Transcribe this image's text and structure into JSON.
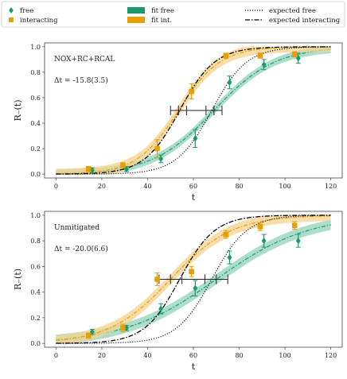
{
  "legend": {
    "entries": [
      {
        "label": "free",
        "marker": "diamond",
        "color": "#1a9a6c"
      },
      {
        "label": "interacting",
        "marker": "square",
        "color": "#e69f00"
      },
      {
        "label": "fit free",
        "marker": "band",
        "color": "#1a9a6c"
      },
      {
        "label": "fit int.",
        "marker": "band",
        "color": "#e69f00"
      },
      {
        "label": "expected free",
        "marker": "dotted",
        "color": "#000000"
      },
      {
        "label": "expected interacting",
        "marker": "dashdot",
        "color": "#000000"
      }
    ]
  },
  "colors": {
    "free": "#1a9a6c",
    "interacting": "#e69f00",
    "free_band": "#8fd1b8",
    "int_band": "#f5d28f",
    "expected": "#000000"
  },
  "chart_data": [
    {
      "type": "scatter",
      "annotation": "NOX+RC+RCAL",
      "delta_label": "Δt = -15.8(3.5)",
      "xlabel": "t",
      "ylabel": "R₋(t)",
      "xlim": [
        -5,
        125
      ],
      "ylim": [
        -0.03,
        1.03
      ],
      "xticks": [
        0,
        20,
        40,
        60,
        80,
        100,
        120
      ],
      "yticks": [
        0.0,
        0.2,
        0.4,
        0.6,
        0.8,
        1.0
      ],
      "series": [
        {
          "name": "free",
          "x": [
            15,
            30,
            45,
            60,
            75,
            90,
            105
          ],
          "y": [
            0.03,
            0.04,
            0.12,
            0.28,
            0.72,
            0.86,
            0.91
          ],
          "yerr": [
            0.02,
            0.02,
            0.03,
            0.07,
            0.05,
            0.04,
            0.04
          ]
        },
        {
          "name": "interacting",
          "x": [
            15,
            30,
            45,
            60,
            75,
            90,
            105
          ],
          "y": [
            0.04,
            0.07,
            0.2,
            0.65,
            0.93,
            0.93,
            0.94
          ],
          "yerr": [
            0.02,
            0.02,
            0.07,
            0.06,
            0.02,
            0.02,
            0.02
          ]
        },
        {
          "name": "fit free",
          "midpoint": 69,
          "slope": 0.075,
          "band": 0.03
        },
        {
          "name": "fit int.",
          "midpoint": 53.5,
          "slope": 0.11,
          "band": 0.04
        },
        {
          "name": "expected free",
          "midpoint": 68,
          "slope": 0.13
        },
        {
          "name": "expected interacting",
          "midpoint": 54,
          "slope": 0.13
        }
      ],
      "delta_bar": {
        "y": 0.5,
        "x_from": 53.5,
        "x_to": 69,
        "err_from": 3.5,
        "err_to": 3.5
      }
    },
    {
      "type": "scatter",
      "annotation": "Unmitigated",
      "delta_label": "Δt = -20.0(6.6)",
      "xlabel": "t",
      "ylabel": "R₋(t)",
      "xlim": [
        -5,
        125
      ],
      "ylim": [
        -0.03,
        1.03
      ],
      "xticks": [
        0,
        20,
        40,
        60,
        80,
        100,
        120
      ],
      "yticks": [
        0.0,
        0.2,
        0.4,
        0.6,
        0.8,
        1.0
      ],
      "series": [
        {
          "name": "free",
          "x": [
            15,
            30,
            45,
            60,
            75,
            90,
            105
          ],
          "y": [
            0.09,
            0.12,
            0.27,
            0.43,
            0.67,
            0.8,
            0.8
          ],
          "yerr": [
            0.02,
            0.02,
            0.04,
            0.06,
            0.05,
            0.05,
            0.05
          ]
        },
        {
          "name": "interacting",
          "x": [
            15,
            30,
            45,
            60,
            75,
            90,
            105
          ],
          "y": [
            0.06,
            0.12,
            0.5,
            0.56,
            0.85,
            0.91,
            0.92
          ],
          "yerr": [
            0.02,
            0.03,
            0.05,
            0.04,
            0.03,
            0.03,
            0.03
          ]
        },
        {
          "name": "fit free",
          "midpoint": 70,
          "slope": 0.05,
          "band": 0.04
        },
        {
          "name": "fit int.",
          "midpoint": 50,
          "slope": 0.075,
          "band": 0.04
        },
        {
          "name": "expected free",
          "midpoint": 68,
          "slope": 0.13
        },
        {
          "name": "expected interacting",
          "midpoint": 54,
          "slope": 0.13
        }
      ],
      "delta_bar": {
        "y": 0.5,
        "x_from": 50,
        "x_to": 70,
        "err_from": 5,
        "err_to": 5
      }
    }
  ]
}
